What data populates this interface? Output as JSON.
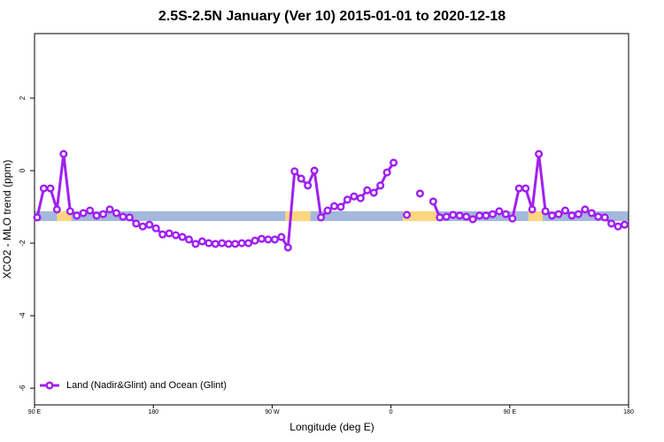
{
  "chart_data": {
    "type": "line",
    "title": "2.5S-2.5N January (Ver 10)   2015-01-01 to 2020-12-18",
    "x_label": "Longitude (deg E)",
    "y_label": "XCO2 - MLO trend (ppm)",
    "x": [
      92,
      97,
      102,
      107,
      112,
      117,
      122,
      127,
      132,
      137,
      142,
      147,
      152,
      157,
      162,
      167,
      172,
      177,
      182,
      187,
      192,
      197,
      202,
      207,
      212,
      217,
      222,
      227,
      232,
      237,
      242,
      247,
      252,
      257,
      262,
      267,
      272,
      277,
      282,
      287,
      292,
      297,
      302,
      307,
      312,
      317,
      322,
      327,
      332,
      337,
      342,
      347,
      352,
      357,
      362,
      367,
      372,
      377,
      382,
      387,
      392,
      397,
      402,
      407,
      412,
      417,
      422,
      427,
      432,
      437,
      442,
      447,
      452,
      457,
      462,
      467,
      472,
      477,
      482,
      487,
      492,
      497,
      502,
      507,
      512,
      517,
      522,
      527,
      532,
      537
    ],
    "series": [
      {
        "name": "Land (Nadir&Glint) and Ocean (Glint)",
        "color": "#a020f0",
        "values": [
          -1.29,
          -0.49,
          -0.49,
          -1.07,
          0.46,
          -1.12,
          -1.24,
          -1.17,
          -1.1,
          -1.24,
          -1.2,
          -1.07,
          -1.17,
          -1.27,
          -1.29,
          -1.46,
          -1.54,
          -1.49,
          -1.59,
          -1.76,
          -1.73,
          -1.78,
          -1.83,
          -1.9,
          -2.02,
          -1.95,
          -2.0,
          -2.02,
          -2.0,
          -2.02,
          -2.02,
          -2.0,
          -2.0,
          -1.93,
          -1.88,
          -1.9,
          -1.9,
          -1.83,
          -2.12,
          -0.02,
          -0.22,
          -0.41,
          0.0,
          -1.29,
          -1.1,
          -0.98,
          -1.0,
          -0.8,
          -0.71,
          -0.76,
          -0.54,
          -0.61,
          -0.41,
          -0.05,
          0.22,
          null,
          -1.22,
          null,
          -0.63,
          null,
          -0.85,
          -1.29,
          -1.27,
          -1.22,
          -1.24,
          -1.27,
          -1.34,
          -1.24,
          -1.24,
          -1.2,
          -1.12,
          -1.2,
          -1.32,
          -0.49,
          -0.49,
          -1.07,
          0.46,
          -1.12,
          -1.24,
          -1.2,
          -1.1,
          -1.24,
          -1.2,
          -1.07,
          -1.17,
          -1.27,
          -1.29,
          -1.46,
          -1.54,
          -1.49
        ]
      }
    ],
    "xlim": [
      90,
      540
    ],
    "xticks": [
      {
        "value": 90,
        "label": "90 E"
      },
      180,
      {
        "value": 270,
        "label": "90 W"
      },
      {
        "value": 360,
        "label": "0"
      },
      {
        "value": 450,
        "label": "90 E"
      },
      {
        "value": 540,
        "label": "180"
      }
    ],
    "ylim": [
      -6.46,
      3.78
    ],
    "yticks": [
      -6,
      -4,
      -2,
      0,
      2
    ],
    "legend": "bottom-left",
    "surface_band": {
      "range": [
        -1.39,
        -1.12
      ],
      "color": "#a4b8dd",
      "segment_color": "#fcd77f",
      "segments": [
        [
          107,
          118
        ],
        [
          280,
          299
        ],
        [
          369,
          396
        ],
        [
          464,
          475
        ]
      ]
    }
  }
}
